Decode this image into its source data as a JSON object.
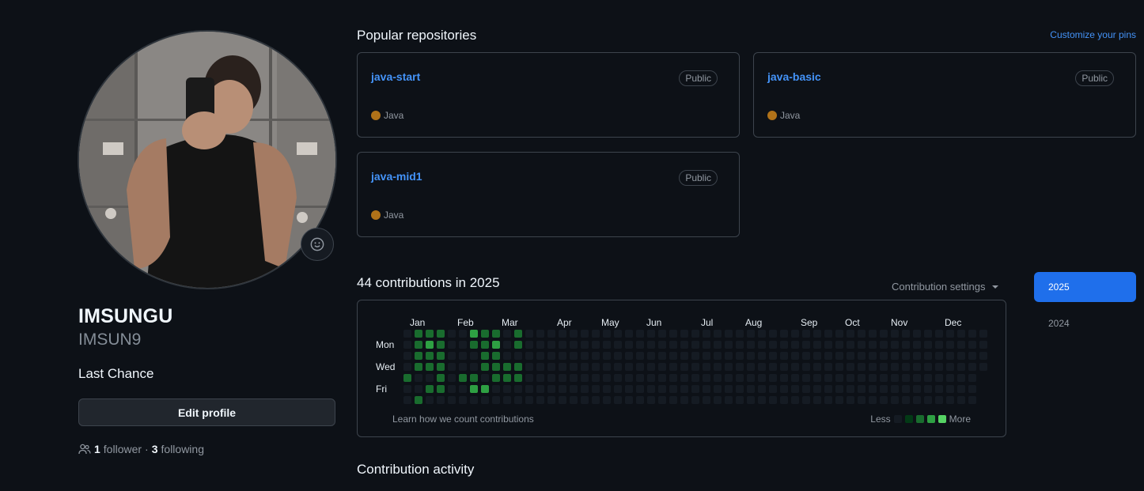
{
  "profile": {
    "fullname": "IMSUNGU",
    "username": "IMSUN9",
    "bio": "Last Chance",
    "edit_label": "Edit profile",
    "followers_count": "1",
    "followers_label": "follower",
    "separator": "·",
    "following_count": "3",
    "following_label": "following"
  },
  "pinned": {
    "title": "Popular repositories",
    "customize_label": "Customize your pins",
    "repos": [
      {
        "name": "java-start",
        "visibility": "Public",
        "language": "Java"
      },
      {
        "name": "java-basic",
        "visibility": "Public",
        "language": "Java"
      },
      {
        "name": "java-mid1",
        "visibility": "Public",
        "language": "Java"
      }
    ],
    "language_color": "#b07219"
  },
  "contributions": {
    "title": "44 contributions in 2025",
    "settings_label": "Contribution settings",
    "months": [
      "Jan",
      "Feb",
      "Mar",
      "Apr",
      "May",
      "Jun",
      "Jul",
      "Aug",
      "Sep",
      "Oct",
      "Nov",
      "Dec"
    ],
    "day_labels": [
      "Mon",
      "Wed",
      "Fri"
    ],
    "learn_label": "Learn how we count contributions",
    "legend_less": "Less",
    "legend_more": "More",
    "active_weeks": [
      [
        0,
        0,
        0,
        0,
        2,
        0,
        0
      ],
      [
        2,
        2,
        2,
        2,
        0,
        0,
        2
      ],
      [
        2,
        3,
        2,
        2,
        0,
        2,
        0
      ],
      [
        2,
        2,
        2,
        2,
        2,
        2,
        0
      ],
      [
        0,
        0,
        0,
        0,
        0,
        0,
        0
      ],
      [
        0,
        0,
        0,
        0,
        2,
        0,
        0
      ],
      [
        3,
        2,
        0,
        0,
        2,
        3,
        0
      ],
      [
        2,
        2,
        2,
        2,
        0,
        3,
        0
      ],
      [
        2,
        3,
        2,
        2,
        2,
        0,
        0
      ],
      [
        0,
        0,
        0,
        2,
        2,
        0,
        0
      ],
      [
        2,
        2,
        0,
        2,
        2,
        0,
        0
      ]
    ],
    "years": [
      "2025",
      "2024"
    ]
  },
  "activity": {
    "title": "Contribution activity"
  }
}
